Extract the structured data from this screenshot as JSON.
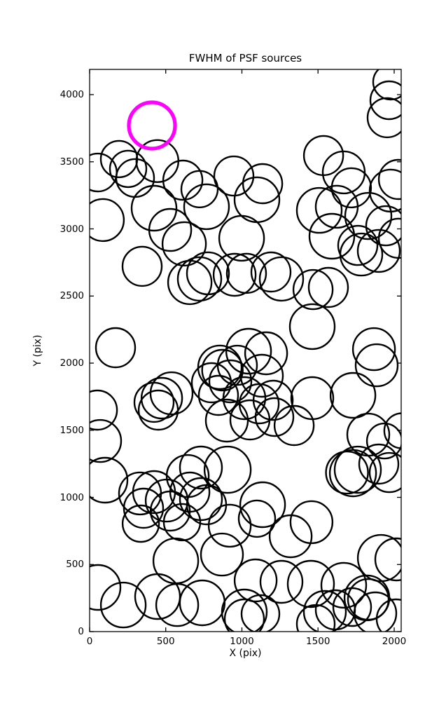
{
  "chart_data": {
    "type": "scatter",
    "title": "FWHM of PSF sources",
    "xlabel": "X (pix)",
    "ylabel": "Y (pix)",
    "xlim": [
      0,
      2046
    ],
    "ylim": [
      0,
      4188
    ],
    "xticks": [
      0,
      500,
      1000,
      1500,
      2000
    ],
    "yticks": [
      0,
      500,
      1000,
      1500,
      2000,
      2500,
      3000,
      3500,
      4000
    ],
    "grid": false,
    "legend": "none",
    "marker_style": "open-circle",
    "marker_color": "#000000",
    "marker_linewidth": 2.4,
    "highlight_color": "#ff00ff",
    "highlight_linewidth": 5.2,
    "highlight_point": {
      "x": 409,
      "y": 3770,
      "r": 33
    },
    "points": [
      {
        "x": 193,
        "y": 3520,
        "r": 26
      },
      {
        "x": 253,
        "y": 3447,
        "r": 26
      },
      {
        "x": 445,
        "y": 3505,
        "r": 30
      },
      {
        "x": 54,
        "y": 3420,
        "r": 27
      },
      {
        "x": 612,
        "y": 3363,
        "r": 28
      },
      {
        "x": 299,
        "y": 3379,
        "r": 27
      },
      {
        "x": 947,
        "y": 3394,
        "r": 28
      },
      {
        "x": 1136,
        "y": 3337,
        "r": 28
      },
      {
        "x": 1977,
        "y": 4094,
        "r": 25
      },
      {
        "x": 1968,
        "y": 3958,
        "r": 27
      },
      {
        "x": 1954,
        "y": 3828,
        "r": 28
      },
      {
        "x": 1536,
        "y": 3546,
        "r": 28
      },
      {
        "x": 1669,
        "y": 3421,
        "r": 30
      },
      {
        "x": 2028,
        "y": 3368,
        "r": 28
      },
      {
        "x": 87,
        "y": 3066,
        "r": 30
      },
      {
        "x": 423,
        "y": 3154,
        "r": 32
      },
      {
        "x": 529,
        "y": 2992,
        "r": 30
      },
      {
        "x": 621,
        "y": 2888,
        "r": 31
      },
      {
        "x": 345,
        "y": 2721,
        "r": 28
      },
      {
        "x": 658,
        "y": 2601,
        "r": 31
      },
      {
        "x": 768,
        "y": 3165,
        "r": 32
      },
      {
        "x": 722,
        "y": 3296,
        "r": 26
      },
      {
        "x": 1099,
        "y": 3217,
        "r": 32
      },
      {
        "x": 998,
        "y": 2930,
        "r": 32
      },
      {
        "x": 777,
        "y": 2669,
        "r": 30
      },
      {
        "x": 722,
        "y": 2627,
        "r": 31
      },
      {
        "x": 952,
        "y": 2658,
        "r": 30
      },
      {
        "x": 1030,
        "y": 2669,
        "r": 28
      },
      {
        "x": 1191,
        "y": 2679,
        "r": 28
      },
      {
        "x": 1260,
        "y": 2627,
        "r": 31
      },
      {
        "x": 1508,
        "y": 3138,
        "r": 32
      },
      {
        "x": 1623,
        "y": 3165,
        "r": 30
      },
      {
        "x": 1719,
        "y": 3306,
        "r": 28
      },
      {
        "x": 1977,
        "y": 3285,
        "r": 30
      },
      {
        "x": 1830,
        "y": 3096,
        "r": 33
      },
      {
        "x": 1945,
        "y": 3023,
        "r": 28
      },
      {
        "x": 1591,
        "y": 2945,
        "r": 32
      },
      {
        "x": 1761,
        "y": 2877,
        "r": 28
      },
      {
        "x": 1899,
        "y": 2836,
        "r": 30
      },
      {
        "x": 1784,
        "y": 2809,
        "r": 30
      },
      {
        "x": 2028,
        "y": 2930,
        "r": 28
      },
      {
        "x": 170,
        "y": 2115,
        "r": 28
      },
      {
        "x": 51,
        "y": 1650,
        "r": 28
      },
      {
        "x": 538,
        "y": 1775,
        "r": 30
      },
      {
        "x": 474,
        "y": 1739,
        "r": 29
      },
      {
        "x": 423,
        "y": 1708,
        "r": 28
      },
      {
        "x": 1044,
        "y": 2089,
        "r": 32
      },
      {
        "x": 1159,
        "y": 2073,
        "r": 30
      },
      {
        "x": 970,
        "y": 1984,
        "r": 28
      },
      {
        "x": 855,
        "y": 1969,
        "r": 31
      },
      {
        "x": 872,
        "y": 1948,
        "r": 29
      },
      {
        "x": 924,
        "y": 1864,
        "r": 30
      },
      {
        "x": 1131,
        "y": 1906,
        "r": 30
      },
      {
        "x": 800,
        "y": 1854,
        "r": 28
      },
      {
        "x": 846,
        "y": 1760,
        "r": 28
      },
      {
        "x": 1016,
        "y": 1739,
        "r": 30
      },
      {
        "x": 1113,
        "y": 1697,
        "r": 28
      },
      {
        "x": 1205,
        "y": 1723,
        "r": 28
      },
      {
        "x": 1462,
        "y": 2272,
        "r": 32
      },
      {
        "x": 1467,
        "y": 2548,
        "r": 28
      },
      {
        "x": 1568,
        "y": 2564,
        "r": 28
      },
      {
        "x": 1867,
        "y": 2104,
        "r": 30
      },
      {
        "x": 1885,
        "y": 1984,
        "r": 30
      },
      {
        "x": 1462,
        "y": 1739,
        "r": 30
      },
      {
        "x": 1729,
        "y": 1760,
        "r": 32
      },
      {
        "x": 69,
        "y": 1420,
        "r": 30
      },
      {
        "x": 101,
        "y": 1128,
        "r": 32
      },
      {
        "x": 451,
        "y": 1650,
        "r": 28
      },
      {
        "x": 331,
        "y": 1029,
        "r": 30
      },
      {
        "x": 423,
        "y": 1039,
        "r": 30
      },
      {
        "x": 354,
        "y": 919,
        "r": 28
      },
      {
        "x": 506,
        "y": 976,
        "r": 30
      },
      {
        "x": 529,
        "y": 898,
        "r": 28
      },
      {
        "x": 644,
        "y": 1159,
        "r": 30
      },
      {
        "x": 658,
        "y": 1039,
        "r": 28
      },
      {
        "x": 901,
        "y": 1572,
        "r": 30
      },
      {
        "x": 1053,
        "y": 1577,
        "r": 28
      },
      {
        "x": 1214,
        "y": 1598,
        "r": 27
      },
      {
        "x": 1343,
        "y": 1535,
        "r": 28
      },
      {
        "x": 731,
        "y": 1222,
        "r": 30
      },
      {
        "x": 906,
        "y": 1206,
        "r": 33
      },
      {
        "x": 731,
        "y": 987,
        "r": 30
      },
      {
        "x": 768,
        "y": 945,
        "r": 28
      },
      {
        "x": 1136,
        "y": 945,
        "r": 32
      },
      {
        "x": 1830,
        "y": 1467,
        "r": 30
      },
      {
        "x": 1936,
        "y": 1420,
        "r": 25
      },
      {
        "x": 2050,
        "y": 1496,
        "r": 25
      },
      {
        "x": 1761,
        "y": 1206,
        "r": 33
      },
      {
        "x": 1729,
        "y": 1180,
        "r": 33
      },
      {
        "x": 1690,
        "y": 1185,
        "r": 30
      },
      {
        "x": 1899,
        "y": 1248,
        "r": 28
      },
      {
        "x": 1968,
        "y": 1185,
        "r": 28
      },
      {
        "x": 336,
        "y": 804,
        "r": 26
      },
      {
        "x": 607,
        "y": 815,
        "r": 26
      },
      {
        "x": 566,
        "y": 527,
        "r": 32
      },
      {
        "x": 55,
        "y": 329,
        "r": 32
      },
      {
        "x": 221,
        "y": 198,
        "r": 32
      },
      {
        "x": 446,
        "y": 261,
        "r": 32
      },
      {
        "x": 575,
        "y": 198,
        "r": 30
      },
      {
        "x": 920,
        "y": 789,
        "r": 30
      },
      {
        "x": 1099,
        "y": 841,
        "r": 26
      },
      {
        "x": 869,
        "y": 574,
        "r": 30
      },
      {
        "x": 1090,
        "y": 381,
        "r": 30
      },
      {
        "x": 1260,
        "y": 371,
        "r": 30
      },
      {
        "x": 1320,
        "y": 710,
        "r": 30
      },
      {
        "x": 740,
        "y": 214,
        "r": 32
      },
      {
        "x": 1016,
        "y": 146,
        "r": 32
      },
      {
        "x": 1016,
        "y": 94,
        "r": 28
      },
      {
        "x": 1122,
        "y": 131,
        "r": 27
      },
      {
        "x": 1457,
        "y": 815,
        "r": 30
      },
      {
        "x": 1913,
        "y": 548,
        "r": 33
      },
      {
        "x": 2014,
        "y": 538,
        "r": 30
      },
      {
        "x": 1453,
        "y": 355,
        "r": 33
      },
      {
        "x": 1669,
        "y": 345,
        "r": 32
      },
      {
        "x": 1545,
        "y": 146,
        "r": 30
      },
      {
        "x": 1614,
        "y": 162,
        "r": 28
      },
      {
        "x": 1724,
        "y": 183,
        "r": 27
      },
      {
        "x": 1821,
        "y": 251,
        "r": 32
      },
      {
        "x": 1830,
        "y": 240,
        "r": 29
      },
      {
        "x": 1876,
        "y": 136,
        "r": 30
      },
      {
        "x": 2014,
        "y": 94,
        "r": 28
      },
      {
        "x": 1485,
        "y": 57,
        "r": 27
      }
    ]
  }
}
